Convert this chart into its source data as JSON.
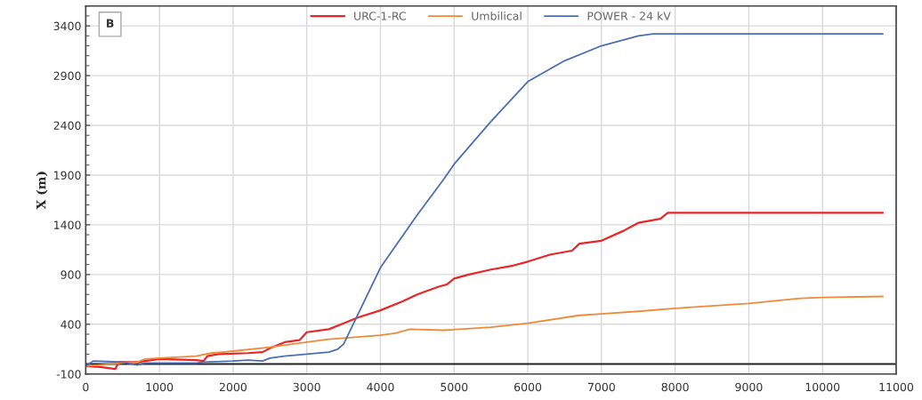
{
  "chart_data": {
    "type": "line",
    "ylabel": "X (m)",
    "annotations": [
      "B"
    ],
    "xlim": [
      0,
      11000
    ],
    "xticks": [
      0,
      1000,
      2000,
      3000,
      4000,
      5000,
      6000,
      7000,
      8000,
      9000,
      10000,
      11000
    ],
    "ylim": [
      -100,
      3600
    ],
    "yticks": [
      -100,
      400,
      900,
      1400,
      1900,
      2400,
      2900,
      3400
    ],
    "grid": true,
    "legend": "top",
    "line_style": "solid",
    "ref_lines": [
      {
        "axis": "y",
        "value": 0,
        "color": "#222222"
      }
    ],
    "series": [
      {
        "name": "URC-1-RC",
        "color": "#e8262a",
        "x": [
          0,
          200,
          400,
          450,
          700,
          1000,
          1500,
          1600,
          1650,
          1800,
          2200,
          2400,
          2500,
          2700,
          2900,
          3000,
          3300,
          3500,
          3700,
          4000,
          4300,
          4500,
          4800,
          4900,
          5000,
          5200,
          5500,
          5800,
          6000,
          6300,
          6600,
          6700,
          7000,
          7300,
          7500,
          7800,
          7900,
          10820
        ],
        "values": [
          -20,
          -30,
          -50,
          20,
          20,
          50,
          40,
          30,
          80,
          100,
          110,
          120,
          160,
          220,
          240,
          320,
          350,
          410,
          470,
          540,
          630,
          700,
          780,
          800,
          860,
          900,
          950,
          990,
          1030,
          1100,
          1140,
          1210,
          1240,
          1340,
          1420,
          1460,
          1520,
          1520
        ]
      },
      {
        "name": "Umbilical",
        "color": "#ed8b3a",
        "x": [
          0,
          500,
          700,
          800,
          1000,
          1500,
          1700,
          2000,
          2500,
          3000,
          3300,
          3500,
          4000,
          4200,
          4400,
          4860,
          5500,
          6000,
          6700,
          7000,
          7500,
          8000,
          9000,
          9700,
          10000,
          10820
        ],
        "values": [
          -20,
          10,
          20,
          50,
          60,
          80,
          110,
          130,
          170,
          220,
          250,
          260,
          290,
          310,
          350,
          340,
          370,
          410,
          490,
          505,
          530,
          560,
          610,
          660,
          670,
          680
        ]
      },
      {
        "name": "POWER - 24 kV",
        "color": "#4a6fb5",
        "x": [
          0,
          100,
          300,
          500,
          700,
          800,
          1500,
          1600,
          2000,
          2200,
          2400,
          2500,
          2700,
          3000,
          3300,
          3420,
          3500,
          4000,
          4500,
          4860,
          5000,
          5500,
          6000,
          6500,
          7000,
          7500,
          7700,
          10820
        ],
        "values": [
          -20,
          30,
          25,
          20,
          -10,
          10,
          10,
          20,
          30,
          40,
          30,
          60,
          80,
          100,
          120,
          150,
          200,
          970,
          1500,
          1860,
          2010,
          2440,
          2840,
          3050,
          3200,
          3300,
          3320,
          3320
        ]
      }
    ]
  }
}
